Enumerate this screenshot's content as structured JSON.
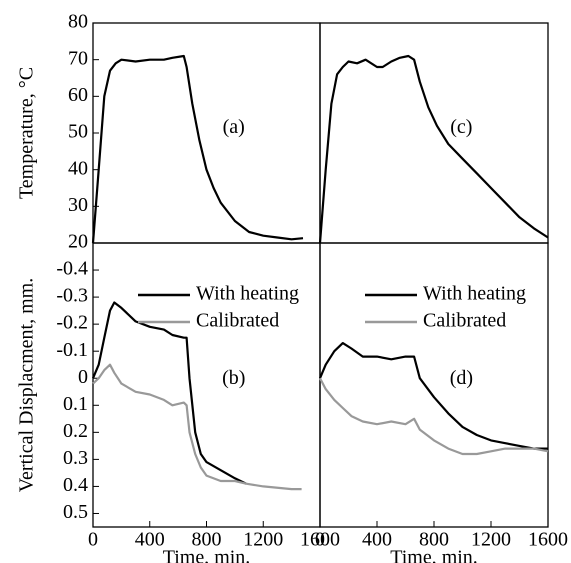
{
  "chart_data": [
    {
      "type": "line",
      "annotation": "(a)",
      "ylabel": "Temperature, °C",
      "xlim": [
        0,
        1600
      ],
      "ylim": [
        20,
        80
      ],
      "yticks": [
        20,
        30,
        40,
        50,
        60,
        70,
        80
      ],
      "x": [
        0,
        40,
        80,
        120,
        160,
        200,
        300,
        400,
        500,
        560,
        640,
        660,
        700,
        750,
        800,
        850,
        900,
        1000,
        1100,
        1200,
        1300,
        1400,
        1480
      ],
      "series": [
        {
          "color": "#000000",
          "values": [
            20,
            40,
            60,
            67,
            69,
            70,
            69.5,
            70,
            70,
            70.5,
            71,
            68,
            58,
            48,
            40,
            35,
            31,
            26,
            23,
            22,
            21.5,
            21,
            21.3
          ]
        }
      ]
    },
    {
      "type": "line",
      "annotation": "(c)",
      "xlim": [
        0,
        1600
      ],
      "ylim": [
        20,
        80
      ],
      "x": [
        0,
        40,
        80,
        120,
        160,
        200,
        260,
        320,
        400,
        440,
        500,
        560,
        620,
        660,
        700,
        760,
        820,
        900,
        1000,
        1100,
        1200,
        1300,
        1400,
        1500,
        1600
      ],
      "series": [
        {
          "color": "#000000",
          "values": [
            20,
            40,
            58,
            66,
            68,
            69.5,
            69,
            70,
            68,
            68,
            69.5,
            70.5,
            71,
            70,
            64,
            57,
            52,
            47,
            43,
            39,
            35,
            31,
            27,
            24,
            21.5
          ]
        }
      ]
    },
    {
      "type": "line",
      "annotation": "(b)",
      "ylabel": "Vertical Displacment, mm.",
      "xlabel": "Time, min.",
      "xlim": [
        0,
        1600
      ],
      "xticks": [
        0,
        400,
        800,
        1200,
        1600
      ],
      "ylim": [
        -0.5,
        0.55
      ],
      "inverted": true,
      "yticks": [
        -0.4,
        -0.3,
        -0.2,
        -0.1,
        0,
        0.1,
        0.2,
        0.3,
        0.4,
        0.5
      ],
      "legend": "upper right",
      "x": [
        0,
        40,
        80,
        120,
        150,
        200,
        300,
        400,
        500,
        560,
        640,
        660,
        680,
        720,
        760,
        800,
        900,
        1000,
        1080,
        1200,
        1400,
        1470
      ],
      "series": [
        {
          "name": "With heating",
          "color": "#000000",
          "values": [
            0,
            -0.05,
            -0.15,
            -0.25,
            -0.28,
            -0.26,
            -0.21,
            -0.19,
            -0.18,
            -0.16,
            -0.15,
            -0.15,
            0,
            0.2,
            0.28,
            0.31,
            0.34,
            0.37,
            0.39,
            null,
            null,
            null
          ]
        },
        {
          "name": "Calibrated",
          "color": "#999999",
          "values": [
            0.02,
            0,
            -0.03,
            -0.05,
            -0.02,
            0.02,
            0.05,
            0.06,
            0.08,
            0.1,
            0.09,
            0.1,
            0.2,
            0.28,
            0.33,
            0.36,
            0.38,
            0.38,
            0.39,
            0.4,
            0.41,
            0.41
          ]
        }
      ]
    },
    {
      "type": "line",
      "annotation": "(d)",
      "xlabel": "Time, min.",
      "xlim": [
        0,
        1600
      ],
      "xticks": [
        0,
        400,
        800,
        1200,
        1600
      ],
      "ylim": [
        -0.5,
        0.55
      ],
      "inverted": true,
      "legend": "upper right",
      "x": [
        0,
        40,
        100,
        160,
        220,
        300,
        400,
        500,
        600,
        660,
        700,
        800,
        900,
        1000,
        1100,
        1200,
        1300,
        1400,
        1500,
        1600
      ],
      "series": [
        {
          "name": "With heating",
          "color": "#000000",
          "values": [
            0,
            -0.05,
            -0.1,
            -0.13,
            -0.11,
            -0.08,
            -0.08,
            -0.07,
            -0.08,
            -0.08,
            0,
            0.07,
            0.13,
            0.18,
            0.21,
            0.23,
            0.24,
            0.25,
            0.26,
            0.26
          ]
        },
        {
          "name": "Calibrated",
          "color": "#999999",
          "values": [
            0,
            0.04,
            0.08,
            0.11,
            0.14,
            0.16,
            0.17,
            0.16,
            0.17,
            0.15,
            0.19,
            0.23,
            0.26,
            0.28,
            0.28,
            0.27,
            0.26,
            0.26,
            0.26,
            0.27
          ]
        }
      ]
    }
  ]
}
